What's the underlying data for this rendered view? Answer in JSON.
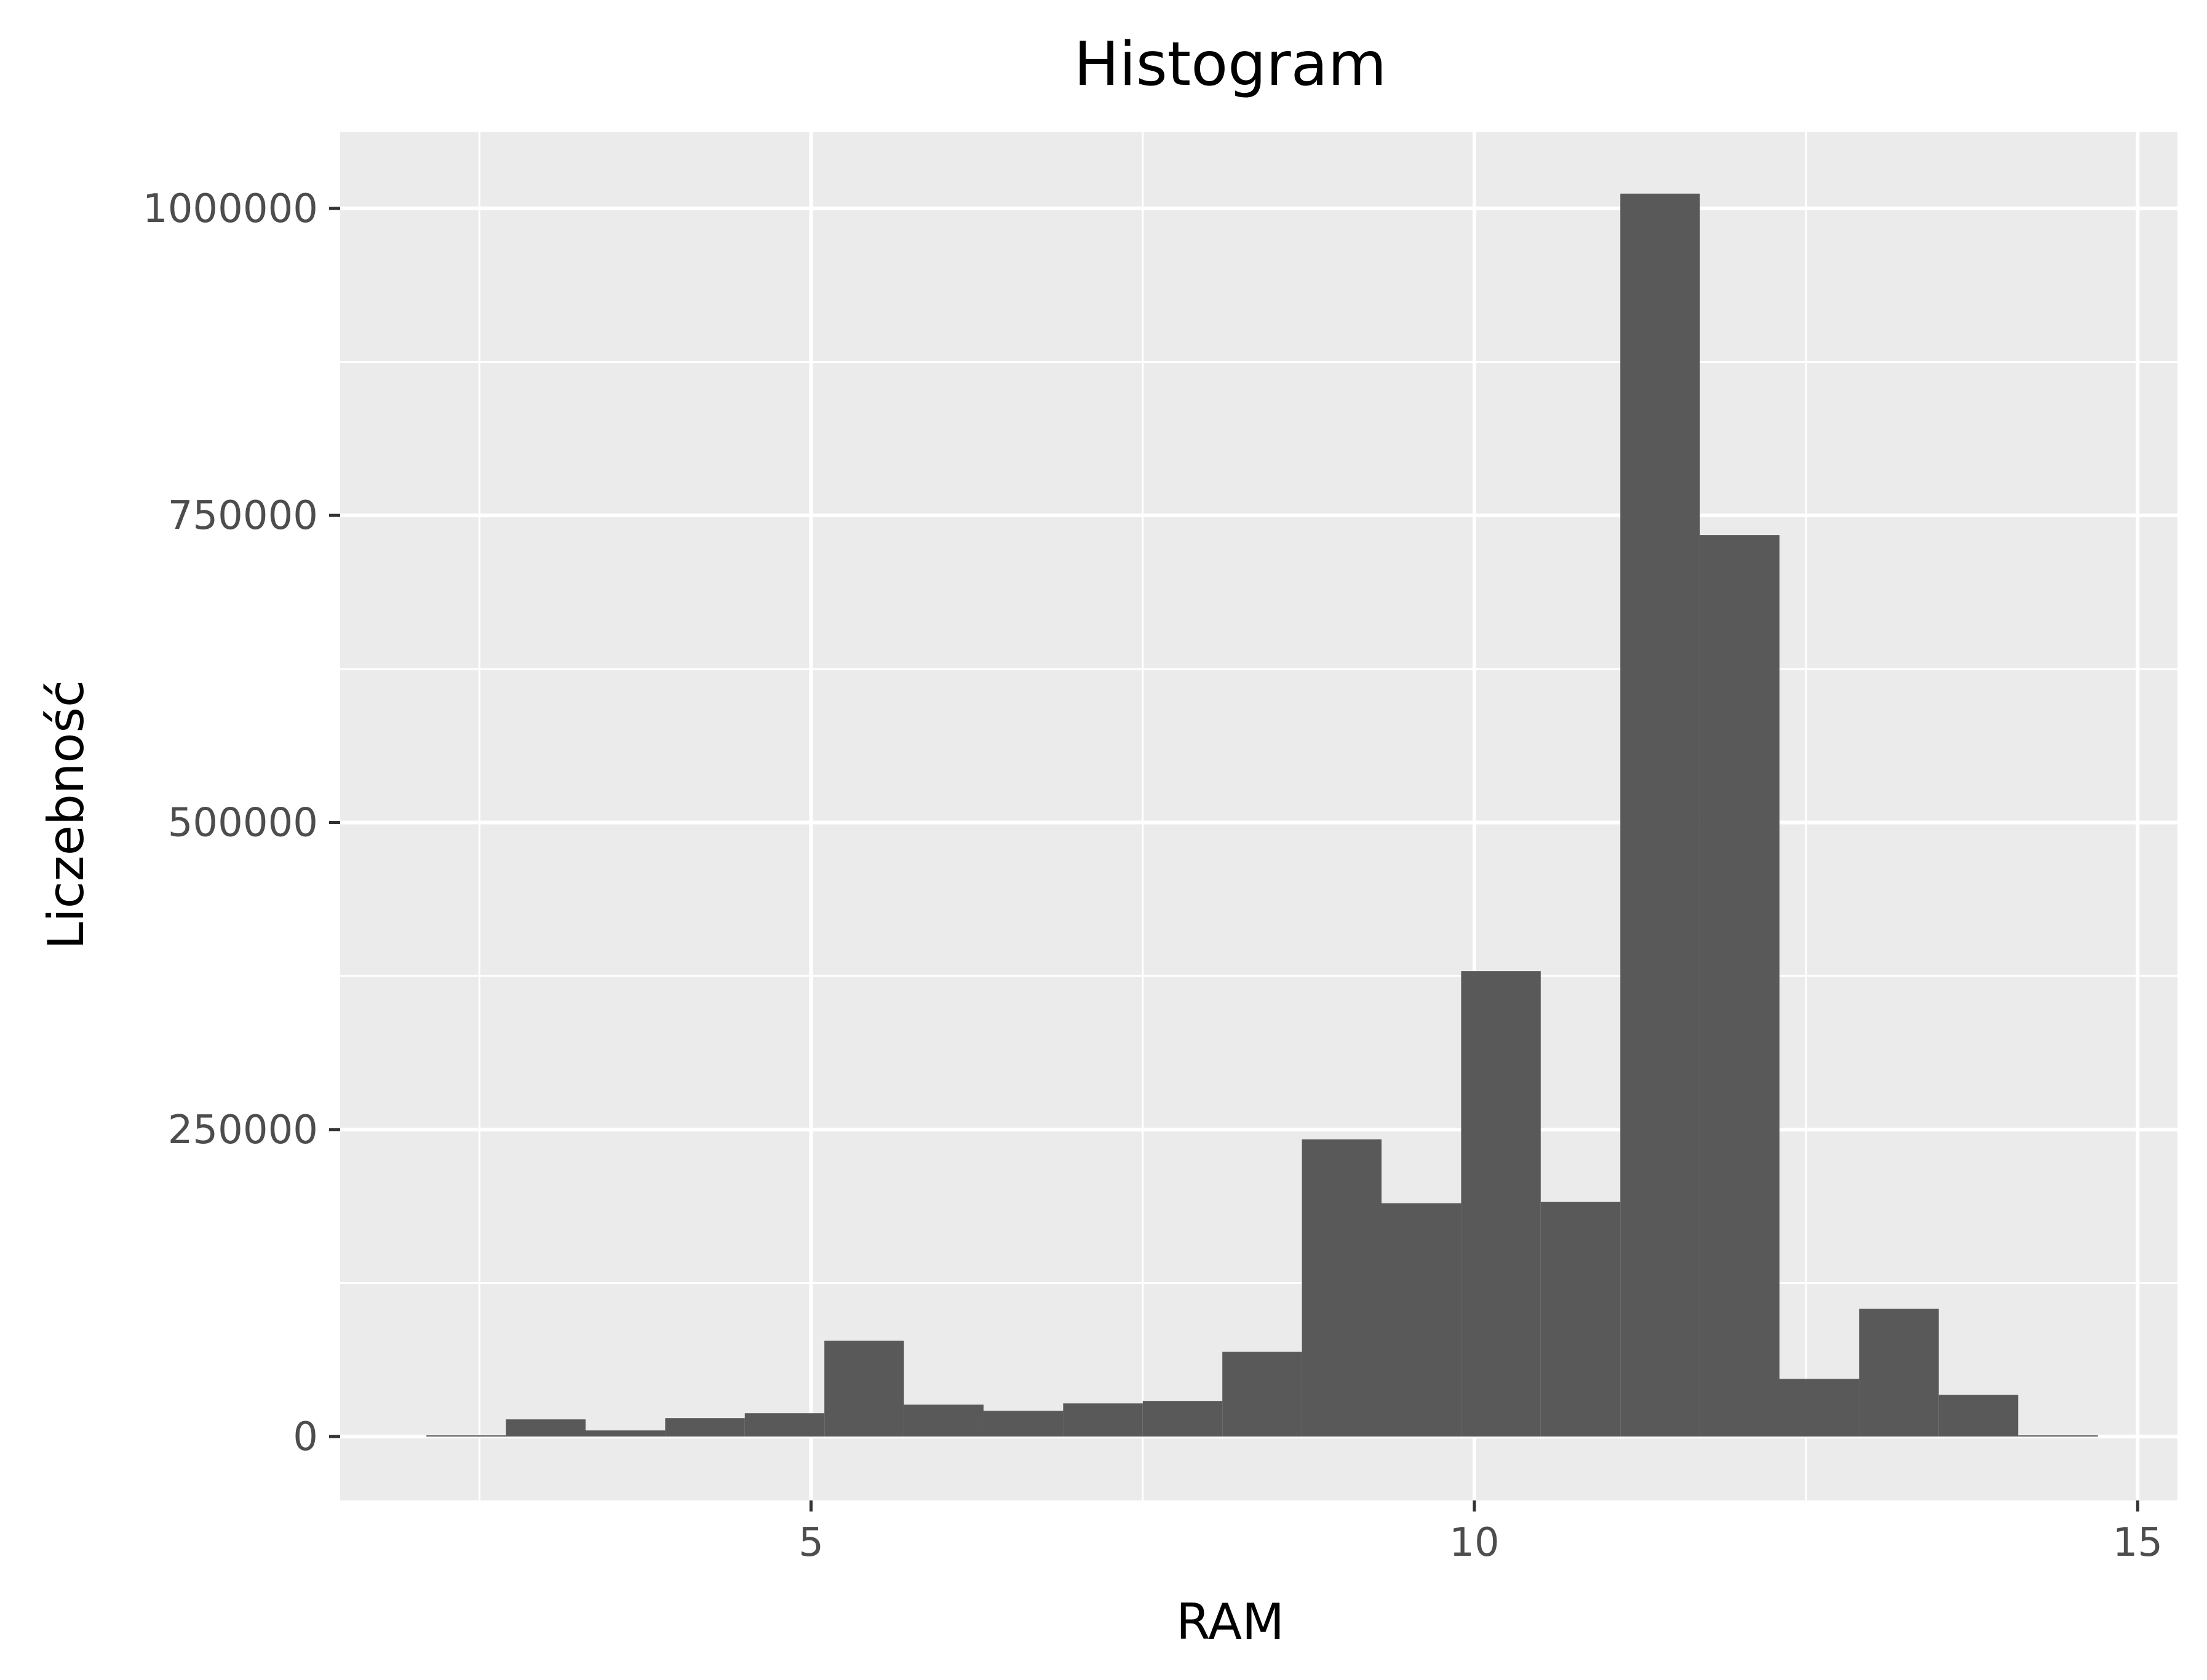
{
  "chart_data": {
    "type": "bar",
    "title": "Histogram",
    "xlabel": "RAM",
    "ylabel": "Liczebność",
    "xlim": [
      1.45,
      15.3
    ],
    "ylim": [
      -52000,
      1062000
    ],
    "x_ticks": [
      5,
      10,
      15
    ],
    "x_tick_labels": [
      "5",
      "10",
      "15"
    ],
    "x_minor_ticks": [
      2.5,
      7.5,
      12.5
    ],
    "y_ticks": [
      0,
      250000,
      500000,
      750000,
      1000000
    ],
    "y_tick_labels": [
      "0",
      "250000",
      "500000",
      "750000",
      "1000000"
    ],
    "y_minor_ticks": [
      125000,
      375000,
      625000,
      875000
    ],
    "bin_width": 0.6,
    "bin_edges": [
      2.1,
      2.7,
      3.3,
      3.9,
      4.5,
      5.1,
      5.7,
      6.3,
      6.9,
      7.5,
      8.1,
      8.7,
      9.3,
      9.9,
      10.5,
      11.1,
      11.7,
      12.3,
      12.9,
      13.5,
      14.1,
      14.7
    ],
    "values": [
      1000,
      14000,
      5000,
      15000,
      19000,
      78000,
      26000,
      21000,
      27000,
      29000,
      69000,
      242000,
      190000,
      379000,
      191000,
      1012000,
      734000,
      47000,
      104000,
      34000,
      1000
    ],
    "grid": true,
    "legend": "none",
    "colors": {
      "panel": "#ebebeb",
      "grid": "#ffffff",
      "bar": "#595959",
      "tick_text": "#4d4d4d",
      "label_text": "#000000"
    }
  }
}
